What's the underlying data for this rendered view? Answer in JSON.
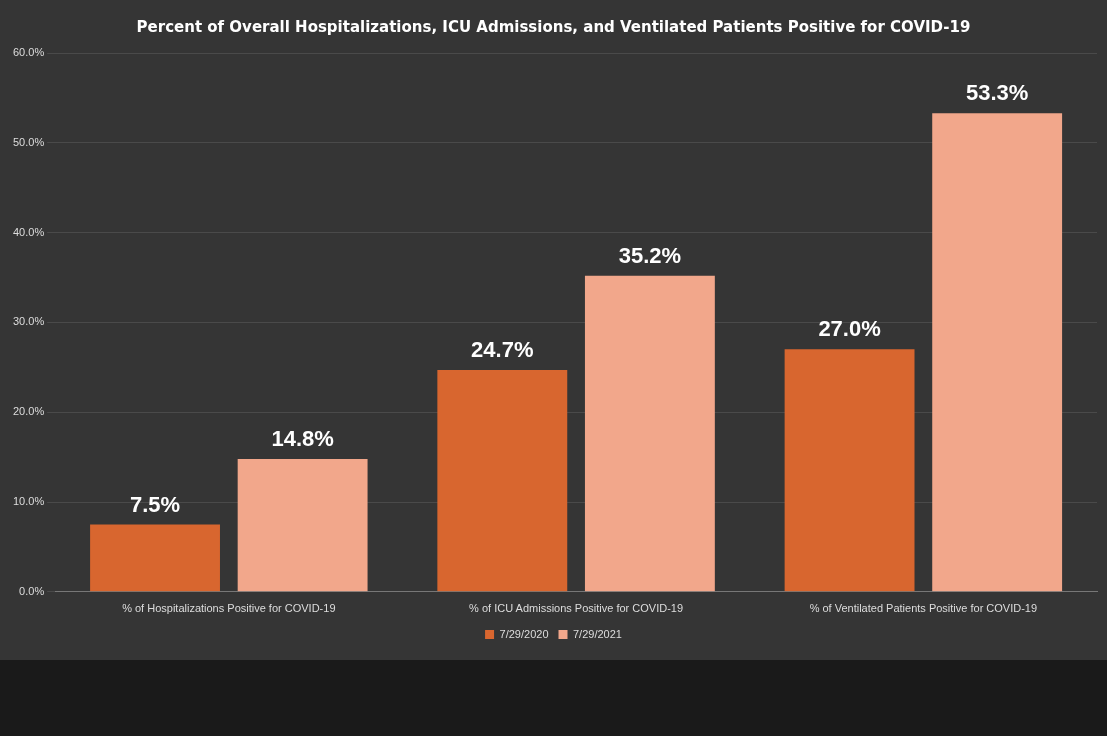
{
  "chart_data": {
    "type": "bar",
    "title": "Percent of Overall Hospitalizations, ICU Admissions, and Ventilated Patients Positive for COVID-19",
    "categories": [
      "% of Hospitalizations Positive for COVID-19",
      "% of ICU Admissions Positive for COVID-19",
      "% of Ventilated Patients Positive for COVID-19"
    ],
    "series": [
      {
        "name": "7/29/2020",
        "color": "#d8662f",
        "values": [
          7.5,
          24.7,
          27.0
        ],
        "value_labels": [
          "7.5%",
          "24.7%",
          "27.0%"
        ]
      },
      {
        "name": "7/29/2021",
        "color": "#f2a78b",
        "values": [
          14.8,
          35.2,
          53.3
        ],
        "value_labels": [
          "14.8%",
          "35.2%",
          "53.3%"
        ]
      }
    ],
    "ylim": [
      0,
      60
    ],
    "yticks": [
      {
        "value": 0,
        "label": "0.0%"
      },
      {
        "value": 10,
        "label": "10.0%"
      },
      {
        "value": 20,
        "label": "20.0%"
      },
      {
        "value": 30,
        "label": "30.0%"
      },
      {
        "value": 40,
        "label": "40.0%"
      },
      {
        "value": 50,
        "label": "50.0%"
      },
      {
        "value": 60,
        "label": "60.0%"
      }
    ],
    "grid": "y",
    "legend": "bottom"
  }
}
